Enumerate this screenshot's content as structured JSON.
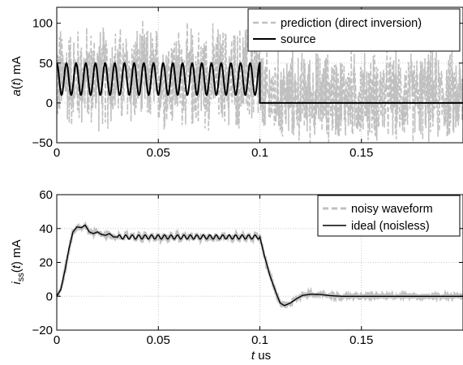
{
  "colors": {
    "background": "#ffffff",
    "frame": "#000000",
    "grid": "#c8c8c8",
    "prediction": "#c0c0c0",
    "source": "#000000",
    "noisy": "#c0c0c0",
    "ideal": "#000000"
  },
  "chart_data": [
    {
      "type": "line",
      "ylabel": {
        "var": "a",
        "arg": "t",
        "unit": "mA"
      },
      "xlim": [
        0,
        0.2
      ],
      "ylim": [
        -50,
        120
      ],
      "xticks": [
        0,
        0.05,
        0.1,
        0.15
      ],
      "xtick_labels": [
        "0",
        "0.05",
        "0.1",
        "0.15"
      ],
      "yticks": [
        -50,
        0,
        50,
        100
      ],
      "ytick_labels": [
        "−50",
        "0",
        "50",
        "100"
      ],
      "grid": true,
      "legend_position": "top-right",
      "series": [
        {
          "name": "prediction (direct inversion)",
          "style": "dashed",
          "description_values": "broadband noise, roughly uniform between -50 and 120 mA, centered near 30 mA for t<0.1 and near 0 mA for t>0.1"
        },
        {
          "name": "source",
          "style": "solid",
          "sine_offset": 30,
          "sine_amplitude": 20,
          "sine_cycles": 21,
          "on_interval": [
            0,
            0.1
          ],
          "off_value": 0
        }
      ]
    },
    {
      "type": "line",
      "ylabel": {
        "var": "i",
        "sub": "ss",
        "arg": "t",
        "unit": "mA"
      },
      "xlabel": {
        "var": "t",
        "unit": "us"
      },
      "xlim": [
        0,
        0.2
      ],
      "ylim": [
        -20,
        60
      ],
      "xticks": [
        0,
        0.05,
        0.1,
        0.15
      ],
      "xtick_labels": [
        "0",
        "0.05",
        "0.1",
        "0.15"
      ],
      "yticks": [
        -20,
        0,
        20,
        40,
        60
      ],
      "ytick_labels": [
        "−20",
        "0",
        "20",
        "40",
        "60"
      ],
      "grid": true,
      "legend_position": "top-right",
      "series": [
        {
          "name": "noisy waveform",
          "style": "dashed",
          "noise_amplitude": 1.5
        },
        {
          "name": "ideal (noisless)",
          "style": "solid",
          "points": [
            [
              0,
              0
            ],
            [
              0.002,
              4
            ],
            [
              0.004,
              15
            ],
            [
              0.006,
              28
            ],
            [
              0.008,
              38
            ],
            [
              0.01,
              41
            ],
            [
              0.012,
              40.5
            ],
            [
              0.014,
              42
            ],
            [
              0.016,
              38
            ],
            [
              0.018,
              37
            ],
            [
              0.02,
              38
            ],
            [
              0.022,
              36.5
            ],
            [
              0.024,
              36
            ],
            [
              0.026,
              37
            ],
            [
              0.028,
              35
            ],
            [
              0.1,
              35
            ],
            [
              0.102,
              25
            ],
            [
              0.105,
              12
            ],
            [
              0.108,
              2
            ],
            [
              0.11,
              -4
            ],
            [
              0.112,
              -5.5
            ],
            [
              0.115,
              -4
            ],
            [
              0.118,
              -1.5
            ],
            [
              0.121,
              0.5
            ],
            [
              0.125,
              1.2
            ],
            [
              0.13,
              1
            ],
            [
              0.135,
              0.3
            ],
            [
              0.14,
              0
            ],
            [
              0.2,
              0
            ]
          ],
          "ripple_interval": [
            0.03,
            0.1
          ],
          "ripple_amplitude": 1.2,
          "ripple_cycles": 22
        }
      ]
    }
  ]
}
